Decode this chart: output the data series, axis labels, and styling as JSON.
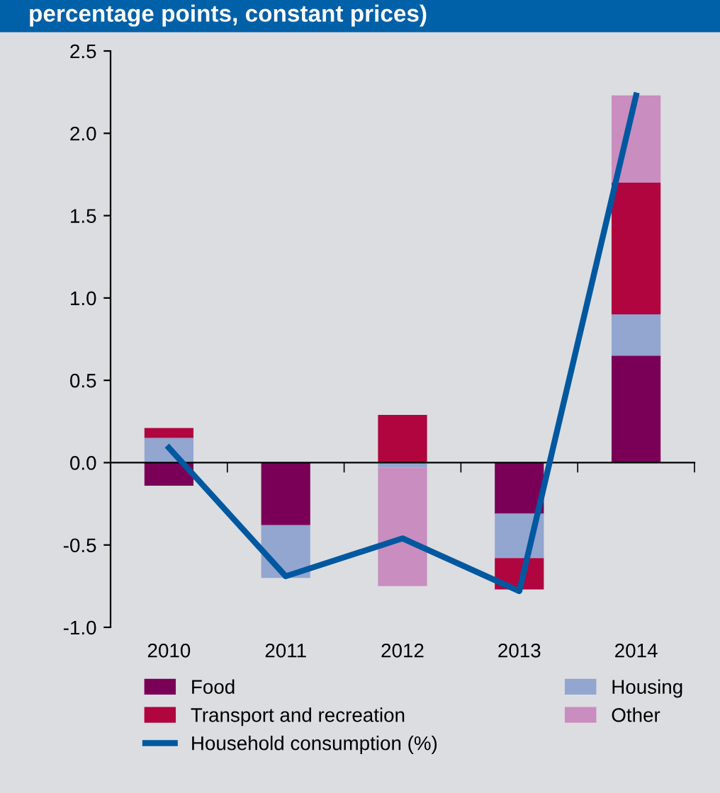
{
  "chart_data": {
    "type": "bar",
    "stacked": true,
    "title": "percentage points, constant prices)",
    "categories": [
      "2010",
      "2011",
      "2012",
      "2013",
      "2014"
    ],
    "series": [
      {
        "name": "Food",
        "color": "#7a0057",
        "values": [
          -0.14,
          -0.38,
          0,
          -0.31,
          0.65
        ]
      },
      {
        "name": "Housing",
        "color": "#92a6d0",
        "values": [
          0.15,
          -0.32,
          -0.03,
          -0.27,
          0.25
        ]
      },
      {
        "name": "Transport and recreation",
        "color": "#b0053f",
        "values": [
          0.06,
          0,
          0.29,
          -0.19,
          0.8
        ]
      },
      {
        "name": "Other",
        "color": "#c98dbf",
        "values": [
          0,
          null,
          -0.72,
          0,
          0.53
        ]
      },
      {
        "name": "Household consumption (%)",
        "type": "line",
        "color": "#0058a0",
        "values": [
          0.09,
          -0.69,
          -0.46,
          -0.78,
          2.23
        ]
      }
    ],
    "ylim": [
      -1.0,
      2.5
    ],
    "yticks": [
      {
        "value": -1,
        "label": "-1.0"
      },
      -0.5,
      {
        "value": 0,
        "label": "0.0"
      },
      0.5,
      {
        "value": 1,
        "label": "1.0"
      },
      1.5,
      {
        "value": 2,
        "label": "2.0"
      },
      2.5
    ],
    "legend": "bottom"
  }
}
